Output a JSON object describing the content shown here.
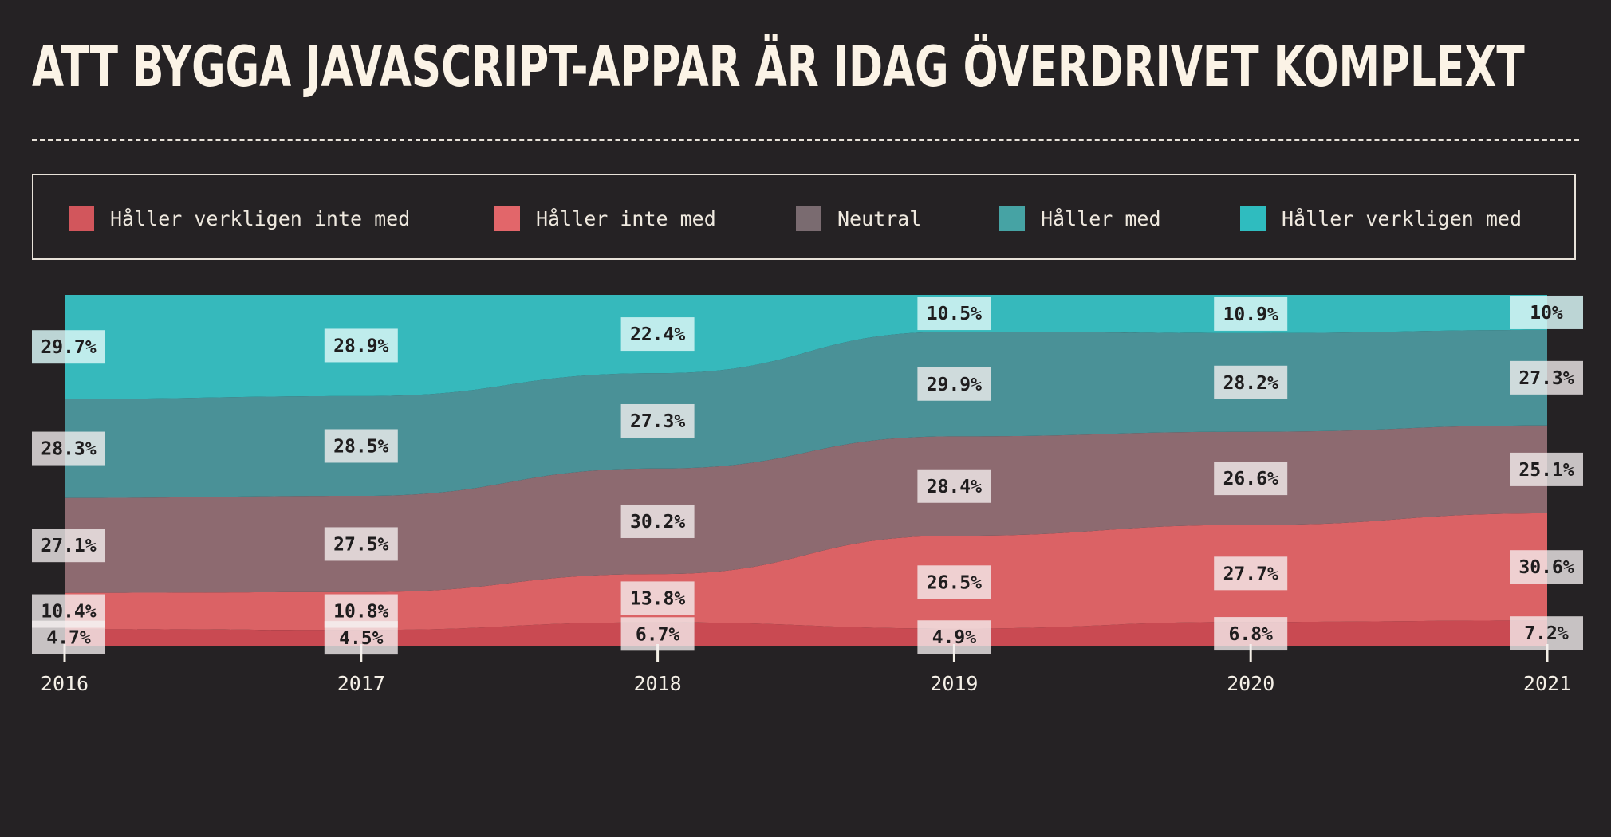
{
  "title": "ATT BYGGA JAVASCRIPT-APPAR ÄR IDAG ÖVERDRIVET KOMPLEXT",
  "legend": [
    {
      "label": "Håller verkligen inte med",
      "color": "#d2565c"
    },
    {
      "label": "Håller inte med",
      "color": "#e2666a"
    },
    {
      "label": "Neutral",
      "color": "#7a6b70"
    },
    {
      "label": "Håller med",
      "color": "#46a3a4"
    },
    {
      "label": "Håller verkligen med",
      "color": "#2fbcbf"
    }
  ],
  "chart_data": {
    "type": "area",
    "stacked": true,
    "normalized": true,
    "x": [
      "2016",
      "2017",
      "2018",
      "2019",
      "2020",
      "2021"
    ],
    "series": [
      {
        "name": "Håller verkligen inte med",
        "color": "#c94a52",
        "values": [
          4.7,
          4.5,
          6.7,
          4.9,
          6.8,
          7.2
        ],
        "labels": [
          "4.7%",
          "4.5%",
          "6.7%",
          "4.9%",
          "6.8%",
          "7.2%"
        ]
      },
      {
        "name": "Håller inte med",
        "color": "#db6265",
        "values": [
          10.4,
          10.8,
          13.8,
          26.5,
          27.7,
          30.6
        ],
        "labels": [
          "10.4%",
          "10.8%",
          "13.8%",
          "26.5%",
          "27.7%",
          "30.6%"
        ]
      },
      {
        "name": "Neutral",
        "color": "#8d6a70",
        "values": [
          27.1,
          27.5,
          30.2,
          28.4,
          26.6,
          25.1
        ],
        "labels": [
          "27.1%",
          "27.5%",
          "30.2%",
          "28.4%",
          "26.6%",
          "25.1%"
        ]
      },
      {
        "name": "Håller med",
        "color": "#4a9197",
        "values": [
          28.3,
          28.5,
          27.3,
          29.9,
          28.2,
          27.3
        ],
        "labels": [
          "28.3%",
          "28.5%",
          "27.3%",
          "29.9%",
          "28.2%",
          "27.3%"
        ]
      },
      {
        "name": "Håller verkligen med",
        "color": "#36b9bc",
        "values": [
          29.7,
          28.9,
          22.4,
          10.5,
          10.9,
          10
        ],
        "labels": [
          "29.7%",
          "28.9%",
          "22.4%",
          "10.5%",
          "10.9%",
          "10%"
        ]
      }
    ],
    "ylim": [
      0,
      100
    ],
    "legend_position": "top"
  }
}
